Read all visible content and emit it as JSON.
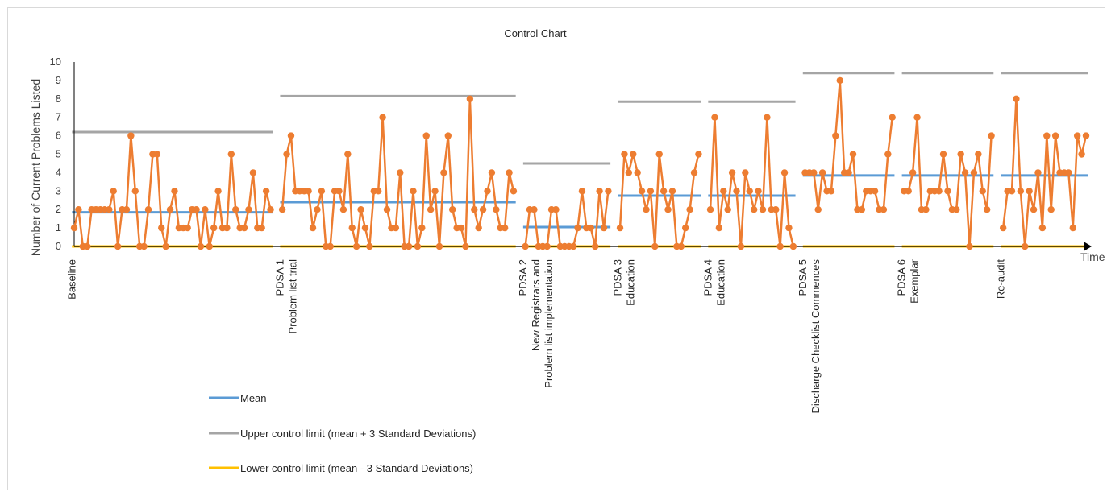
{
  "chart_data": {
    "type": "line",
    "title": "Control Chart",
    "xlabel": "Time",
    "ylabel": "Number of Current Problems Listed",
    "ylim": [
      0,
      10
    ],
    "yticks": [
      0,
      1,
      2,
      3,
      4,
      5,
      6,
      7,
      8,
      9,
      10
    ],
    "grid": false,
    "series_color": "#ed7d31",
    "colors": {
      "mean": "#5b9bd5",
      "ucl": "#a5a5a5",
      "lcl": "#ffc000",
      "axis": "#000000"
    },
    "phases": [
      {
        "lines": [
          "Baseline"
        ],
        "mean": 1.85,
        "ucl": 6.2,
        "lcl": 0,
        "values": [
          1,
          2,
          0,
          0,
          2,
          2,
          2,
          2,
          2,
          3,
          0,
          2,
          2,
          6,
          3,
          0,
          0,
          2,
          5,
          5,
          1,
          0,
          2,
          3,
          1,
          1,
          1,
          2,
          2,
          0,
          2,
          0,
          1,
          3,
          1,
          1,
          5,
          2,
          1,
          1,
          2,
          4,
          1,
          1,
          3,
          2
        ]
      },
      {
        "lines": [
          "PDSA 1",
          "Problem list trial"
        ],
        "mean": 2.4,
        "ucl": 8.15,
        "lcl": 0,
        "values": [
          2,
          5,
          6,
          3,
          3,
          3,
          3,
          1,
          2,
          3,
          0,
          0,
          3,
          3,
          2,
          5,
          1,
          0,
          2,
          1,
          0,
          3,
          3,
          7,
          2,
          1,
          1,
          4,
          0,
          0,
          3,
          0,
          1,
          6,
          2,
          3,
          0,
          4,
          6,
          2,
          1,
          1,
          0,
          8,
          2,
          1,
          2,
          3,
          4,
          2,
          1,
          1,
          4,
          3
        ]
      },
      {
        "lines": [
          "PDSA 2",
          "New Registrars and",
          "Problem list implementation"
        ],
        "mean": 1.05,
        "ucl": 4.5,
        "lcl": 0,
        "values": [
          0,
          2,
          2,
          0,
          0,
          0,
          2,
          2,
          0,
          0,
          0,
          0,
          1,
          3,
          1,
          1,
          0,
          3,
          1,
          3
        ]
      },
      {
        "lines": [
          "PDSA 3",
          "Education"
        ],
        "mean": 2.75,
        "ucl": 7.85,
        "lcl": 0,
        "values": [
          1,
          5,
          4,
          5,
          4,
          3,
          2,
          3,
          0,
          5,
          3,
          2,
          3,
          0,
          0,
          1,
          2,
          4,
          5
        ]
      },
      {
        "lines": [
          "PDSA 4",
          "Education"
        ],
        "mean": 2.75,
        "ucl": 7.85,
        "lcl": 0,
        "values": [
          2,
          7,
          1,
          3,
          2,
          4,
          3,
          0,
          4,
          3,
          2,
          3,
          2,
          7,
          2,
          2,
          0,
          4,
          1,
          0
        ]
      },
      {
        "lines": [
          "PDSA 5",
          "Discharge Checklist Commences"
        ],
        "mean": 3.85,
        "ucl": 9.4,
        "lcl": 0,
        "values": [
          4,
          4,
          4,
          2,
          4,
          3,
          3,
          6,
          9,
          4,
          4,
          5,
          2,
          2,
          3,
          3,
          3,
          2,
          2,
          5,
          7
        ]
      },
      {
        "lines": [
          "PDSA 6",
          "Exemplar"
        ],
        "mean": 3.85,
        "ucl": 9.4,
        "lcl": 0,
        "values": [
          3,
          3,
          4,
          7,
          2,
          2,
          3,
          3,
          3,
          5,
          3,
          2,
          2,
          5,
          4,
          0,
          4,
          5,
          3,
          2,
          6
        ]
      },
      {
        "lines": [
          "Re-audit"
        ],
        "mean": 3.85,
        "ucl": 9.4,
        "lcl": 0,
        "values": [
          1,
          3,
          3,
          8,
          3,
          0,
          3,
          2,
          4,
          1,
          6,
          2,
          6,
          4,
          4,
          4,
          1,
          6,
          5,
          6
        ]
      }
    ],
    "legend": [
      {
        "key": "mean",
        "label": "Mean"
      },
      {
        "key": "ucl",
        "label": "Upper control limit (mean + 3 Standard Deviations)"
      },
      {
        "key": "lcl",
        "label": "Lower control limit (mean - 3 Standard Deviations)"
      }
    ]
  }
}
